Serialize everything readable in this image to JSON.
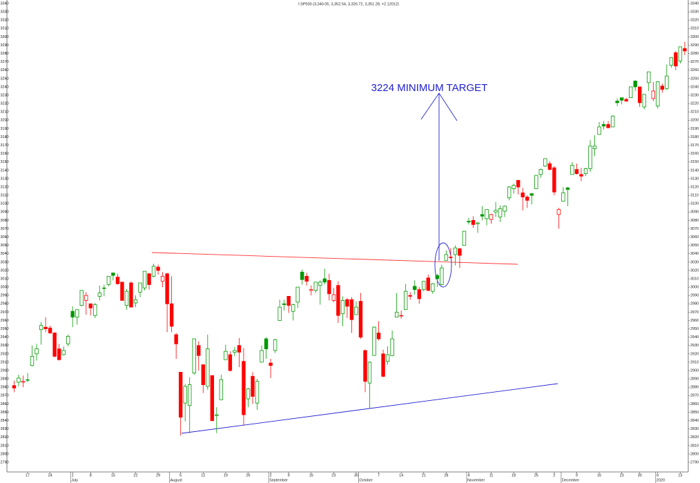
{
  "chart_data": {
    "type": "candlestick",
    "title": "I:SP500 (3,340.05, 3,352.54, 3,326.72, 3,351.28, +2.12012)",
    "annotation": "3224 MINIMUM TARGET",
    "up_color": "#009900",
    "down_color": "#ff0000",
    "ylim": [
      2790,
      3340
    ],
    "yticks": [
      2790,
      2800,
      2810,
      2820,
      2830,
      2840,
      2850,
      2860,
      2870,
      2880,
      2890,
      2900,
      2910,
      2920,
      2930,
      2940,
      2950,
      2960,
      2970,
      2980,
      2990,
      3000,
      3010,
      3020,
      3030,
      3040,
      3050,
      3060,
      3070,
      3080,
      3090,
      3100,
      3110,
      3120,
      3130,
      3140,
      3150,
      3160,
      3170,
      3180,
      3190,
      3200,
      3210,
      3220,
      3230,
      3240,
      3250,
      3260,
      3270,
      3280,
      3290,
      3300,
      3310,
      3320,
      3330,
      3340
    ],
    "categories": [
      null,
      null,
      null,
      "17",
      null,
      null,
      null,
      null,
      "24",
      null,
      null,
      null,
      null,
      "1",
      null,
      null,
      null,
      "8",
      null,
      null,
      null,
      null,
      "15",
      null,
      null,
      null,
      null,
      "22",
      null,
      null,
      null,
      null,
      "29",
      null,
      null,
      null,
      null,
      "5",
      null,
      null,
      null,
      null,
      "12",
      null,
      null,
      null,
      null,
      "19",
      null,
      null,
      null,
      null,
      "26",
      null,
      null,
      null,
      null,
      "2",
      null,
      null,
      null,
      "9",
      null,
      null,
      null,
      null,
      "16",
      null,
      null,
      null,
      null,
      "23",
      null,
      null,
      null,
      null,
      "30",
      null,
      null,
      null,
      null,
      "7",
      null,
      null,
      null,
      null,
      "14",
      null,
      null,
      null,
      null,
      "21",
      null,
      null,
      null,
      null,
      "28",
      null,
      null,
      null,
      null,
      "4",
      null,
      null,
      null,
      null,
      "11",
      null,
      null,
      null,
      null,
      "18",
      null,
      null,
      null,
      null,
      "25",
      null,
      null,
      null,
      "2",
      null,
      null,
      null,
      null,
      "9",
      null,
      null,
      null,
      null,
      "16",
      null,
      null,
      null,
      null,
      "23",
      null,
      null,
      null,
      "30",
      null,
      null,
      null,
      "6",
      null,
      null,
      null,
      null,
      "13",
      null
    ],
    "months": [
      null,
      null,
      null,
      null,
      null,
      null,
      null,
      null,
      null,
      null,
      null,
      null,
      null,
      "July",
      null,
      null,
      null,
      null,
      null,
      null,
      null,
      null,
      null,
      null,
      null,
      null,
      null,
      null,
      null,
      null,
      null,
      null,
      null,
      null,
      null,
      "August",
      null,
      null,
      null,
      null,
      null,
      null,
      null,
      null,
      null,
      null,
      null,
      null,
      null,
      null,
      null,
      null,
      null,
      null,
      null,
      null,
      null,
      "September",
      null,
      null,
      null,
      null,
      null,
      null,
      null,
      null,
      null,
      null,
      null,
      null,
      null,
      null,
      null,
      null,
      null,
      null,
      null,
      "October",
      null,
      null,
      null,
      null,
      null,
      null,
      null,
      null,
      null,
      null,
      null,
      null,
      null,
      null,
      null,
      null,
      null,
      null,
      null,
      null,
      null,
      null,
      null,
      "November",
      null,
      null,
      null,
      null,
      null,
      null,
      null,
      null,
      null,
      null,
      null,
      null,
      null,
      null,
      null,
      null,
      null,
      null,
      null,
      null,
      "December",
      null,
      null,
      null,
      null,
      null,
      null,
      null,
      null,
      null,
      null,
      null,
      null,
      null,
      null,
      null,
      null,
      null,
      null,
      null,
      null,
      "2020",
      null,
      null,
      null,
      null,
      null,
      null,
      null,
      null
    ],
    "open": [
      2882,
      2886,
      2886,
      2889,
      2906,
      2920,
      2949,
      2952,
      2951,
      2945,
      2926,
      2919,
      2932,
      2971,
      2964,
      2978,
      2984,
      2980,
      2966,
      2989,
      2999,
      3003,
      3017,
      3012,
      3006,
      2978,
      3005,
      2981,
      2994,
      2999,
      3016,
      3013,
      3024,
      3007,
      3016,
      2980,
      2943,
      2898,
      2861,
      2858,
      2897,
      2930,
      2907,
      2881,
      2894,
      2846,
      2865,
      2913,
      2919,
      2922,
      2930,
      2911,
      2866,
      2893,
      2861,
      2910,
      2938,
      2909,
      2924,
      2960,
      2980,
      2989,
      2971,
      2982,
      3018,
      3013,
      2996,
      2996,
      3002,
      3010,
      3008,
      2984,
      3002,
      2968,
      2985,
      2985,
      2967,
      2983,
      2924,
      2885,
      2918,
      2945,
      2920,
      2911,
      2918,
      2964,
      2966,
      2973,
      2990,
      3001,
      2997,
      2997,
      3011,
      2995,
      3014,
      3003,
      3032,
      3036,
      3039,
      3046,
      3050,
      3079,
      3080,
      3076,
      3087,
      3082,
      3081,
      3090,
      3084,
      3091,
      3107,
      3118,
      3128,
      3113,
      3108,
      3112,
      3118,
      3135,
      3145,
      3148,
      3143,
      3087,
      3103,
      3119,
      3135,
      3141,
      3135,
      3136,
      3142,
      3166,
      3183,
      3195,
      3195,
      3192,
      3223,
      3227,
      3225,
      3227,
      3247,
      3240,
      3216,
      3245,
      3226,
      3217,
      3241,
      3238,
      3266,
      3281,
      3271,
      3286
    ],
    "high": [
      2888,
      2895,
      2894,
      2897,
      2930,
      2932,
      2958,
      2964,
      2954,
      2946,
      2932,
      2929,
      2943,
      2977,
      2973,
      2996,
      2994,
      2980,
      2981,
      3002,
      3003,
      3013,
      3017,
      3016,
      3006,
      2998,
      3007,
      2990,
      3005,
      3019,
      3017,
      3028,
      3027,
      3018,
      3017,
      3013,
      2945,
      2898,
      2884,
      2892,
      2938,
      2935,
      2907,
      2943,
      2894,
      2856,
      2895,
      2931,
      2923,
      2928,
      2939,
      2927,
      2879,
      2898,
      2890,
      2930,
      2940,
      2914,
      2938,
      2985,
      2985,
      2989,
      2980,
      3000,
      3021,
      3017,
      3002,
      3006,
      3008,
      3022,
      3016,
      2999,
      3007,
      2989,
      2987,
      2988,
      2983,
      2993,
      2925,
      2911,
      2953,
      2959,
      2925,
      2929,
      2948,
      2993,
      2972,
      3004,
      2994,
      3008,
      3000,
      3007,
      3015,
      3005,
      3016,
      3027,
      3044,
      3047,
      3050,
      3047,
      3067,
      3083,
      3085,
      3078,
      3097,
      3093,
      3088,
      3102,
      3098,
      3098,
      3121,
      3124,
      3128,
      3119,
      3110,
      3113,
      3134,
      3142,
      3154,
      3151,
      3145,
      3095,
      3120,
      3120,
      3150,
      3148,
      3143,
      3143,
      3176,
      3182,
      3198,
      3199,
      3199,
      3206,
      3226,
      3227,
      3227,
      3240,
      3248,
      3240,
      3231,
      3258,
      3246,
      3247,
      3244,
      3267,
      3275,
      3283,
      3288,
      3294
    ],
    "low": [
      2874,
      2881,
      2880,
      2886,
      2905,
      2912,
      2931,
      2946,
      2944,
      2916,
      2912,
      2918,
      2929,
      2952,
      2955,
      2977,
      2967,
      2966,
      2963,
      2984,
      2989,
      3001,
      3008,
      3003,
      2984,
      2973,
      2976,
      2976,
      2988,
      2996,
      2997,
      3012,
      3015,
      3000,
      2946,
      2946,
      2914,
      2822,
      2839,
      2825,
      2895,
      2900,
      2873,
      2877,
      2839,
      2825,
      2865,
      2913,
      2899,
      2917,
      2904,
      2834,
      2856,
      2860,
      2853,
      2910,
      2914,
      2891,
      2921,
      2960,
      2972,
      2969,
      2960,
      2975,
      3003,
      3002,
      2990,
      2993,
      2979,
      3003,
      2984,
      2982,
      2957,
      2953,
      2963,
      2945,
      2967,
      2938,
      2874,
      2855,
      2918,
      2936,
      2892,
      2907,
      2917,
      2964,
      2962,
      2973,
      2985,
      2991,
      2980,
      2995,
      2995,
      2992,
      3000,
      3002,
      3032,
      3034,
      3026,
      3023,
      3050,
      3075,
      3071,
      3065,
      3080,
      3074,
      3076,
      3084,
      3078,
      3084,
      3104,
      3112,
      3111,
      3092,
      3095,
      3099,
      3118,
      3131,
      3144,
      3140,
      3110,
      3070,
      3103,
      3097,
      3135,
      3135,
      3127,
      3133,
      3138,
      3157,
      3183,
      3189,
      3191,
      3192,
      3217,
      3219,
      3222,
      3227,
      3235,
      3216,
      3213,
      3235,
      3223,
      3214,
      3233,
      3236,
      3263,
      3260,
      3268,
      3278
    ],
    "close": [
      2879,
      2891,
      2887,
      2889,
      2917,
      2926,
      2954,
      2950,
      2945,
      2917,
      2913,
      2924,
      2941,
      2964,
      2973,
      2996,
      2990,
      2975,
      2979,
      2993,
      2999,
      3013,
      3014,
      3004,
      2984,
      2995,
      2976,
      2985,
      3005,
      3019,
      3003,
      3025,
      3020,
      3013,
      2980,
      2953,
      2932,
      2844,
      2881,
      2883,
      2938,
      2918,
      2883,
      2926,
      2840,
      2847,
      2889,
      2923,
      2900,
      2924,
      2922,
      2847,
      2878,
      2869,
      2887,
      2924,
      2926,
      2906,
      2937,
      2976,
      2979,
      2978,
      2979,
      3000,
      3009,
      3007,
      2997,
      3006,
      3006,
      3006,
      2992,
      2991,
      2966,
      2984,
      2977,
      2961,
      2976,
      2940,
      2887,
      2910,
      2952,
      2938,
      2893,
      2919,
      2938,
      2970,
      2966,
      2995,
      2989,
      2997,
      2986,
      3007,
      2996,
      3004,
      3010,
      3023,
      3039,
      3036,
      3047,
      3038,
      3067,
      3078,
      3075,
      3077,
      3085,
      3093,
      3087,
      3092,
      3094,
      3097,
      3120,
      3122,
      3120,
      3108,
      3104,
      3110,
      3134,
      3141,
      3154,
      3141,
      3114,
      3093,
      3113,
      3117,
      3146,
      3136,
      3133,
      3142,
      3169,
      3169,
      3192,
      3193,
      3191,
      3205,
      3221,
      3224,
      3223,
      3240,
      3240,
      3221,
      3231,
      3258,
      3235,
      3246,
      3237,
      3253,
      3275,
      3265,
      3288,
      3283
    ]
  }
}
